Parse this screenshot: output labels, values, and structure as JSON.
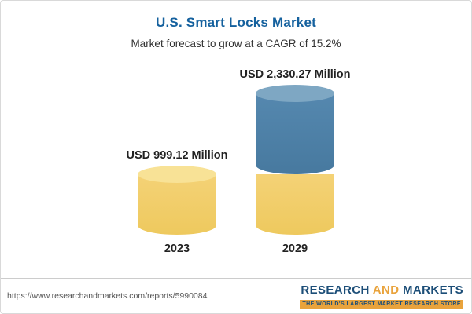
{
  "header": {
    "title": "U.S. Smart Locks Market",
    "subtitle": "Market forecast to grow at a CAGR of 15.2%"
  },
  "chart_data": {
    "type": "bar",
    "title": "U.S. Smart Locks Market",
    "subtitle": "Market forecast to grow at a CAGR of 15.2%",
    "cagr_percent": 15.2,
    "unit": "USD Million",
    "categories": [
      "2023",
      "2029"
    ],
    "values": [
      999.12,
      2330.27
    ],
    "value_labels": [
      "USD 999.12 Million",
      "USD 2,330.27 Million"
    ],
    "ylim": [
      0,
      2400
    ],
    "grid": false,
    "legend": "none",
    "colors": {
      "base_segment": "#EEC95E",
      "base_cap": "#F8E296",
      "growth_segment": "#47799F",
      "growth_cap": "#7EA7C3",
      "title_text": "#15619E"
    }
  },
  "footer": {
    "url": "https://www.researchandmarkets.com/reports/5990084",
    "logo": {
      "word1": "RESEARCH",
      "word2": "AND",
      "word3": "MARKETS",
      "tagline": "THE WORLD'S LARGEST MARKET RESEARCH STORE"
    }
  }
}
